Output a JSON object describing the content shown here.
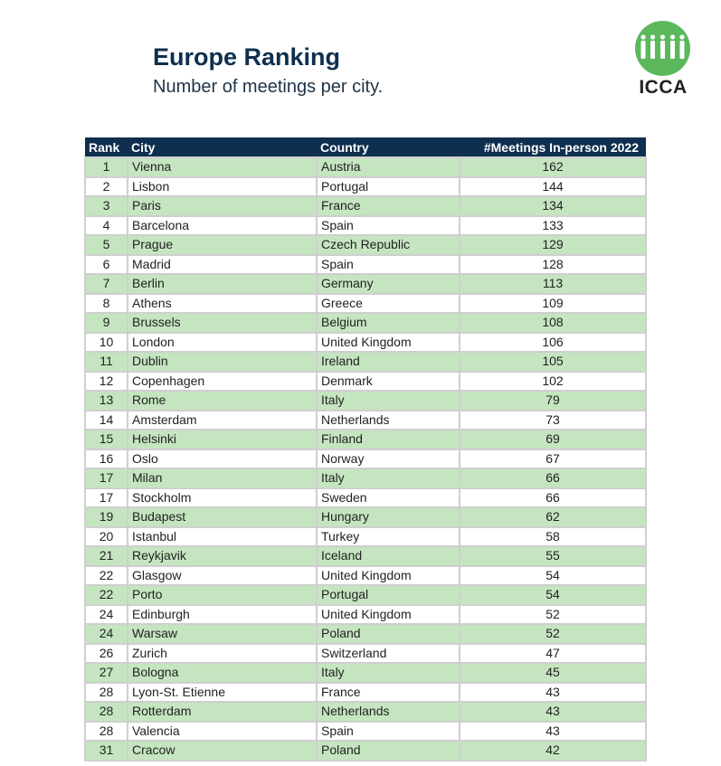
{
  "header": {
    "title": "Europe Ranking",
    "subtitle": "Number of meetings per city."
  },
  "logo": {
    "text": "ICCA",
    "color": "#5cb85c"
  },
  "table": {
    "columns": [
      "Rank",
      "City",
      "Country",
      "#Meetings In-person 2022"
    ],
    "rows": [
      [
        "1",
        "Vienna",
        "Austria",
        "162"
      ],
      [
        "2",
        "Lisbon",
        "Portugal",
        "144"
      ],
      [
        "3",
        "Paris",
        "France",
        "134"
      ],
      [
        "4",
        "Barcelona",
        "Spain",
        "133"
      ],
      [
        "5",
        "Prague",
        "Czech Republic",
        "129"
      ],
      [
        "6",
        "Madrid",
        "Spain",
        "128"
      ],
      [
        "7",
        "Berlin",
        "Germany",
        "113"
      ],
      [
        "8",
        "Athens",
        "Greece",
        "109"
      ],
      [
        "9",
        "Brussels",
        "Belgium",
        "108"
      ],
      [
        "10",
        "London",
        "United Kingdom",
        "106"
      ],
      [
        "11",
        "Dublin",
        "Ireland",
        "105"
      ],
      [
        "12",
        "Copenhagen",
        "Denmark",
        "102"
      ],
      [
        "13",
        "Rome",
        "Italy",
        "79"
      ],
      [
        "14",
        "Amsterdam",
        "Netherlands",
        "73"
      ],
      [
        "15",
        "Helsinki",
        "Finland",
        "69"
      ],
      [
        "16",
        "Oslo",
        "Norway",
        "67"
      ],
      [
        "17",
        "Milan",
        "Italy",
        "66"
      ],
      [
        "17",
        "Stockholm",
        "Sweden",
        "66"
      ],
      [
        "19",
        "Budapest",
        "Hungary",
        "62"
      ],
      [
        "20",
        "Istanbul",
        "Turkey",
        "58"
      ],
      [
        "21",
        "Reykjavik",
        "Iceland",
        "55"
      ],
      [
        "22",
        "Glasgow",
        "United Kingdom",
        "54"
      ],
      [
        "22",
        "Porto",
        "Portugal",
        "54"
      ],
      [
        "24",
        "Edinburgh",
        "United Kingdom",
        "52"
      ],
      [
        "24",
        "Warsaw",
        "Poland",
        "52"
      ],
      [
        "26",
        "Zurich",
        "Switzerland",
        "47"
      ],
      [
        "27",
        "Bologna",
        "Italy",
        "45"
      ],
      [
        "28",
        "Lyon-St. Etienne",
        "France",
        "43"
      ],
      [
        "28",
        "Rotterdam",
        "Netherlands",
        "43"
      ],
      [
        "28",
        "Valencia",
        "Spain",
        "43"
      ],
      [
        "31",
        "Cracow",
        "Poland",
        "42"
      ]
    ]
  }
}
